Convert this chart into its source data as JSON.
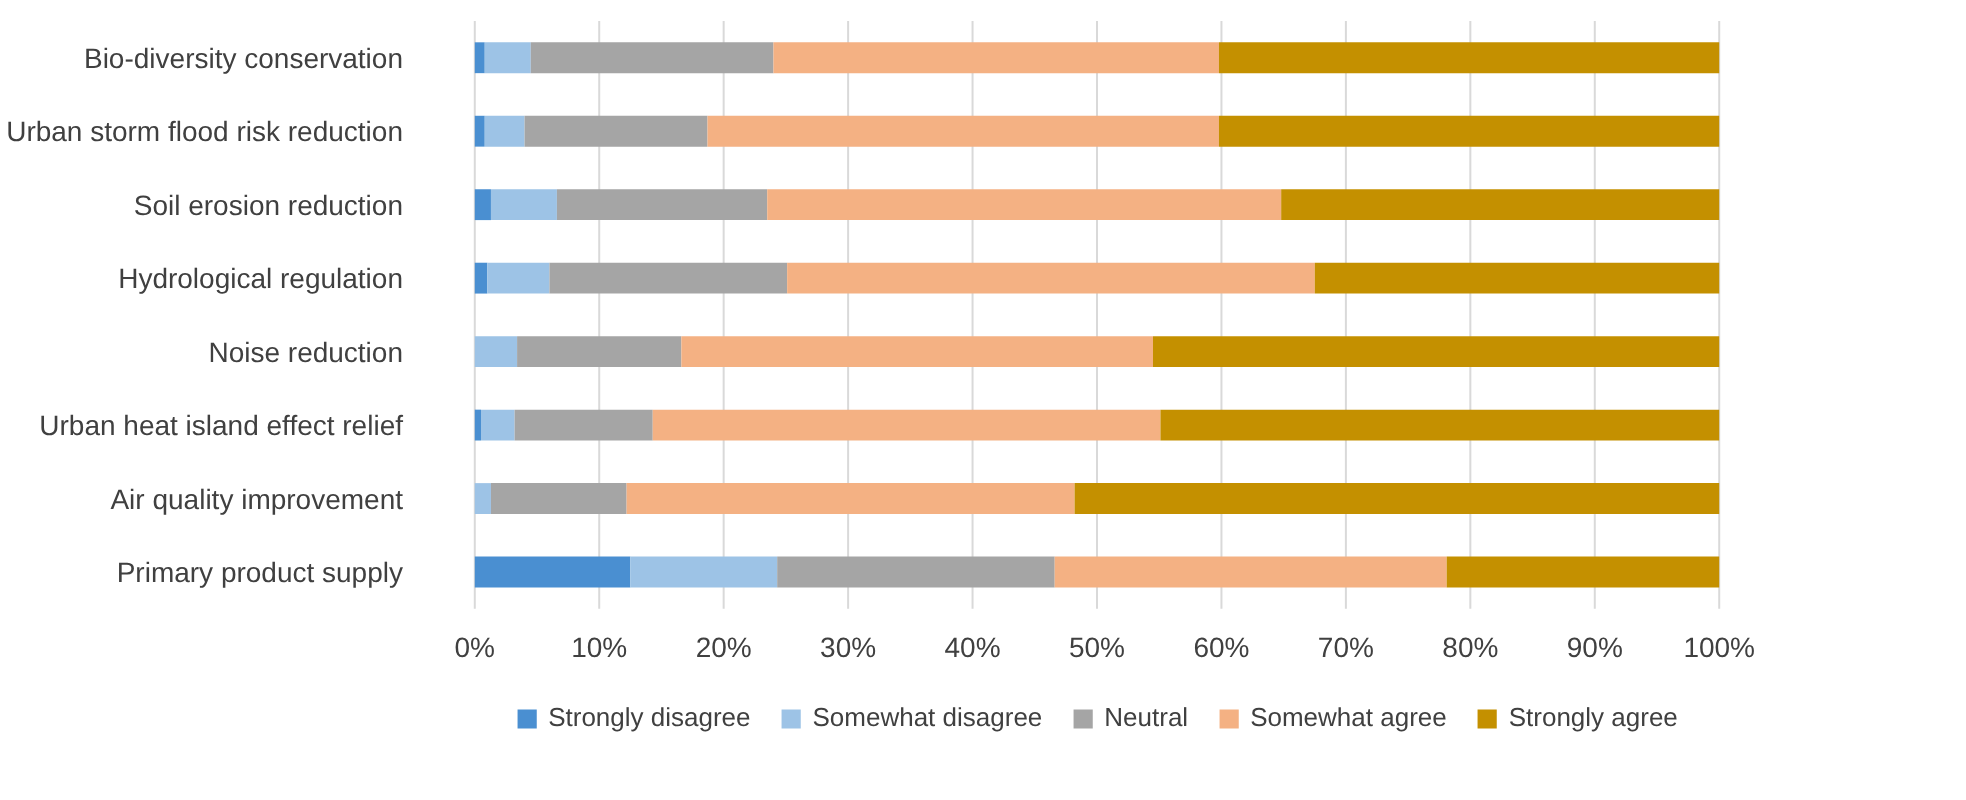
{
  "chart_data": {
    "type": "bar",
    "orientation": "horizontal",
    "stacked": true,
    "categories": [
      "Bio-diversity conservation",
      "Urban storm flood risk reduction",
      "Soil erosion reduction",
      "Hydrological regulation",
      "Noise reduction",
      "Urban heat island effect relief",
      "Air quality improvement",
      "Primary product supply"
    ],
    "series": [
      {
        "name": "Strongly disagree",
        "color": "#4a8fd1",
        "values": [
          0.8,
          0.8,
          1.3,
          1.0,
          0,
          0.5,
          0,
          12.5
        ]
      },
      {
        "name": "Somewhat disagree",
        "color": "#9dc3e6",
        "values": [
          3.7,
          3.2,
          5.3,
          5.0,
          3.4,
          2.7,
          1.3,
          11.8
        ]
      },
      {
        "name": "Neutral",
        "color": "#a5a5a5",
        "values": [
          19.5,
          14.7,
          16.9,
          19.1,
          13.2,
          11.1,
          10.9,
          22.3
        ]
      },
      {
        "name": "Somewhat agree",
        "color": "#f4b183",
        "values": [
          35.8,
          41.1,
          41.3,
          42.4,
          37.9,
          40.8,
          36.0,
          31.5
        ]
      },
      {
        "name": "Strongly agree",
        "color": "#c49000",
        "values": [
          40.2,
          40.2,
          35.2,
          32.5,
          45.5,
          44.9,
          51.8,
          21.9
        ]
      }
    ],
    "xlim": [
      0,
      100
    ],
    "xticks": [
      {
        "value": 0,
        "label": "0%"
      },
      {
        "value": 10,
        "label": "10%"
      },
      {
        "value": 20,
        "label": "20%"
      },
      {
        "value": 30,
        "label": "30%"
      },
      {
        "value": 40,
        "label": "40%"
      },
      {
        "value": 50,
        "label": "50%"
      },
      {
        "value": 60,
        "label": "60%"
      },
      {
        "value": 70,
        "label": "70%"
      },
      {
        "value": 80,
        "label": "80%"
      },
      {
        "value": 90,
        "label": "90%"
      },
      {
        "value": 100,
        "label": "100%"
      }
    ],
    "grid": "x",
    "legend": "bottom"
  }
}
